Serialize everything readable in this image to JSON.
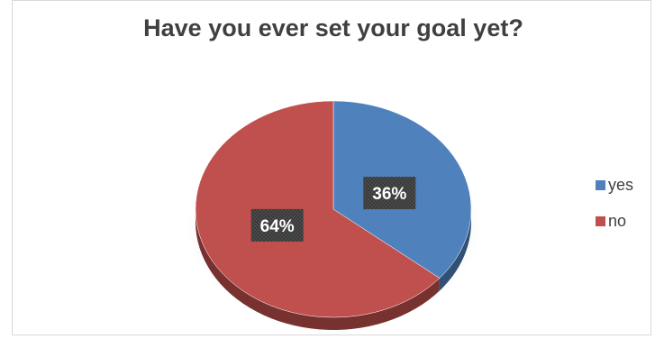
{
  "chart_data": {
    "type": "pie",
    "title": "Have you ever set your goal yet?",
    "categories": [
      "yes",
      "no"
    ],
    "values": [
      36,
      64
    ],
    "data_labels": [
      "36%",
      "64%"
    ],
    "colors": [
      "#4f81bd",
      "#c0504d"
    ],
    "legend_position": "right",
    "style": "3d"
  },
  "legend": {
    "items": [
      {
        "label": "yes",
        "color": "#4f81bd"
      },
      {
        "label": "no",
        "color": "#c0504d"
      }
    ]
  }
}
